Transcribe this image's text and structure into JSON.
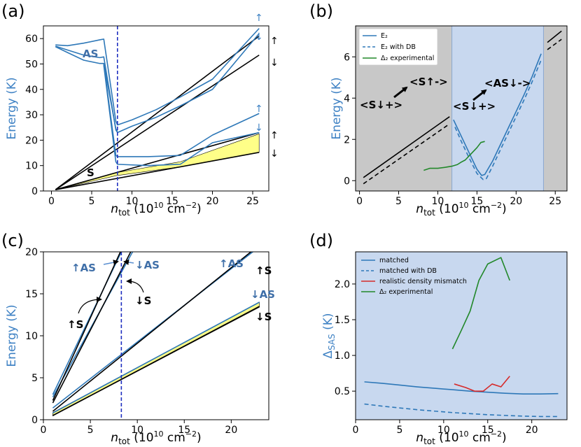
{
  "colors": {
    "blue": "#2e78b8",
    "label_blue": "#3f82c4",
    "black": "#000000",
    "green": "#22882a",
    "red": "#d62a2a",
    "yellow": "#ffff88",
    "grey": "#c8c8c8",
    "light_blue": "#c8d8ef",
    "dashed_blue": "#1f2fc0"
  },
  "panels": {
    "a": {
      "label": "(a)",
      "xlabel_var": "n",
      "xlabel_sub": "tot",
      "xlabel_unit": " (10",
      "xlabel_exp": "10",
      "xlabel_unit2": " cm",
      "xlabel_exp2": "−2",
      "xlabel_close": ")",
      "ylabel": "Energy (K)",
      "ann_AS": "AS",
      "ann_S": "S"
    },
    "b": {
      "label": "(b)",
      "xlabel_var": "n",
      "xlabel_sub": "tot",
      "xlabel_unit": " (10",
      "xlabel_exp": "10",
      "xlabel_unit2": " cm",
      "xlabel_exp2": "−2",
      "xlabel_close": ")",
      "ylabel": "Energy (K)",
      "legend": [
        "E₂",
        "E₂ with DB",
        "Δ₂ experimental"
      ],
      "ann": [
        "<S↓+>",
        "<S↑->",
        "<S↓+>",
        "<AS↓->"
      ]
    },
    "c": {
      "label": "(c)",
      "xlabel_var": "n",
      "xlabel_sub": "tot",
      "xlabel_unit": " (10",
      "xlabel_exp": "10",
      "xlabel_unit2": " cm",
      "xlabel_exp2": "−2",
      "xlabel_close": ")",
      "ylabel": "Energy (K)",
      "ann_blue": [
        "↑AS",
        "↓AS",
        "↑AS",
        "↓AS"
      ],
      "ann_black": [
        "↑S",
        "↓S",
        "↑S",
        "↓S"
      ]
    },
    "d": {
      "label": "(d)",
      "xlabel_var": "n",
      "xlabel_sub": "tot",
      "xlabel_unit": " (10",
      "xlabel_exp": "10",
      "xlabel_unit2": " cm",
      "xlabel_exp2": "−2",
      "xlabel_close": ")",
      "ylabel_main": "Δ",
      "ylabel_sub": "SAS",
      "ylabel_unit": " (K)",
      "legend": [
        "matched",
        "matched with DB",
        "realistic density mismatch",
        "Δ₂ experimental"
      ]
    }
  },
  "chart_data": [
    {
      "panel": "a",
      "type": "line",
      "xlim": [
        -1,
        27
      ],
      "ylim": [
        0,
        65
      ],
      "xticks": [
        "0",
        "5",
        "10",
        "15",
        "20",
        "25"
      ],
      "xtick_values": [
        0,
        5,
        10,
        15,
        20,
        25
      ],
      "yticks": [
        "0",
        "10",
        "20",
        "30",
        "40",
        "50",
        "60"
      ],
      "ytick_values": [
        0,
        10,
        20,
        30,
        40,
        50,
        60
      ],
      "vline_x": 8.2,
      "shaded_region": {
        "x": [
          0.5,
          8,
          16,
          25.8
        ],
        "upper": [
          0.5,
          7.2,
          11.5,
          22.5
        ],
        "lower": [
          0.5,
          6,
          9.5,
          15.2
        ]
      },
      "series": [
        {
          "name": "black-1",
          "color": "black",
          "x": [
            0.5,
            25.8
          ],
          "y": [
            0.5,
            61
          ]
        },
        {
          "name": "black-2",
          "color": "black",
          "x": [
            0.5,
            25.8
          ],
          "y": [
            0.5,
            53.5
          ]
        },
        {
          "name": "black-3",
          "color": "black",
          "x": [
            0.5,
            25.8
          ],
          "y": [
            0.5,
            23
          ]
        },
        {
          "name": "black-4",
          "color": "black",
          "x": [
            0.5,
            25.8
          ],
          "y": [
            0.5,
            15.2
          ]
        },
        {
          "name": "blue-AS-1",
          "color": "blue",
          "x": [
            0.5,
            2,
            4,
            6,
            6.5,
            8,
            8.2,
            10,
            13,
            16,
            20,
            25.8
          ],
          "y": [
            57.5,
            57.2,
            58.2,
            59.5,
            59.8,
            27.5,
            26,
            28,
            32,
            37,
            44,
            64
          ]
        },
        {
          "name": "blue-AS-2",
          "color": "blue",
          "x": [
            0.5,
            2,
            4,
            6,
            6.5,
            8,
            8.2,
            10,
            13,
            16,
            20,
            25.8
          ],
          "y": [
            57,
            55.5,
            53.5,
            52.5,
            52.8,
            24,
            23,
            25.5,
            29,
            33.5,
            40,
            62
          ]
        },
        {
          "name": "blue-AS-3",
          "color": "blue",
          "x": [
            0.5,
            2,
            4,
            6,
            6.5,
            8,
            8.2
          ],
          "y": [
            56.8,
            54.5,
            51.5,
            50.2,
            50.2,
            24.5,
            23.5
          ]
        },
        {
          "name": "blue-S-1",
          "color": "blue",
          "x": [
            6.5,
            8,
            8.2,
            12,
            16,
            20,
            25.8
          ],
          "y": [
            50,
            14,
            13.5,
            13.5,
            14,
            22,
            30.5
          ]
        },
        {
          "name": "blue-S-2",
          "color": "blue",
          "x": [
            6.5,
            8,
            8.2,
            12,
            16,
            20,
            25.8
          ],
          "y": [
            49.5,
            11.5,
            10.5,
            10,
            10.5,
            19,
            23
          ]
        }
      ]
    },
    {
      "panel": "b",
      "type": "line",
      "xlim": [
        -0.5,
        26.5
      ],
      "ylim": [
        -0.5,
        7.5
      ],
      "xticks": [
        "0",
        "5",
        "10",
        "15",
        "20",
        "25"
      ],
      "xtick_values": [
        0,
        5,
        10,
        15,
        20,
        25
      ],
      "yticks": [
        "0",
        "2",
        "4",
        "6"
      ],
      "ytick_values": [
        0,
        2,
        4,
        6
      ],
      "regions": [
        {
          "x0": -0.5,
          "x1": 11.8,
          "fill": "grey"
        },
        {
          "x0": 11.8,
          "x1": 23.5,
          "fill": "light_blue"
        },
        {
          "x0": 23.5,
          "x1": 26.5,
          "fill": "grey"
        }
      ],
      "series": [
        {
          "name": "E₂ (left)",
          "color": "black",
          "dash": false,
          "x": [
            0.5,
            11.5
          ],
          "y": [
            0.15,
            3.1
          ]
        },
        {
          "name": "E₂ with DB (left)",
          "color": "black",
          "dash": true,
          "x": [
            0.5,
            11.5
          ],
          "y": [
            -0.15,
            2.75
          ]
        },
        {
          "name": "E₂ (right)",
          "color": "black",
          "dash": false,
          "x": [
            24,
            25.8
          ],
          "y": [
            6.7,
            7.25
          ]
        },
        {
          "name": "E₂ with DB (right)",
          "color": "black",
          "dash": true,
          "x": [
            24,
            25.8
          ],
          "y": [
            6.35,
            6.85
          ]
        },
        {
          "name": "E₂",
          "color": "blue",
          "dash": false,
          "x": [
            12,
            13,
            14,
            15,
            15.6,
            16,
            17,
            18,
            19,
            20,
            21,
            22,
            23.2
          ],
          "y": [
            2.95,
            2.15,
            1.35,
            0.55,
            0.25,
            0.3,
            0.95,
            1.75,
            2.55,
            3.35,
            4.15,
            5.0,
            6.15
          ]
        },
        {
          "name": "E₂ with DB",
          "color": "blue",
          "dash": true,
          "x": [
            12.2,
            13,
            14,
            15,
            15.8,
            16.2,
            17,
            18,
            19,
            20,
            21,
            22,
            23.2
          ],
          "y": [
            2.6,
            1.9,
            1.1,
            0.35,
            0.05,
            0.1,
            0.7,
            1.5,
            2.3,
            3.1,
            3.9,
            4.75,
            5.85
          ]
        },
        {
          "name": "Δ₂ experimental",
          "color": "green",
          "dash": false,
          "x": [
            8.2,
            9,
            10,
            11,
            11.8,
            12.5,
            13,
            13.5,
            14,
            14.5,
            15,
            15.5,
            16
          ],
          "y": [
            0.5,
            0.6,
            0.6,
            0.65,
            0.7,
            0.78,
            0.9,
            1.0,
            1.2,
            1.4,
            1.6,
            1.85,
            1.9
          ]
        }
      ]
    },
    {
      "panel": "c",
      "type": "line",
      "xlim": [
        0,
        24
      ],
      "ylim": [
        0,
        20
      ],
      "xticks": [
        "0",
        "5",
        "10",
        "15",
        "20"
      ],
      "xtick_values": [
        0,
        5,
        10,
        15,
        20
      ],
      "yticks": [
        "0",
        "5",
        "10",
        "15",
        "20"
      ],
      "ytick_values": [
        0,
        5,
        10,
        15,
        20
      ],
      "vline_x": 8.3,
      "shaded_region": {
        "x": [
          1,
          23
        ],
        "upper": [
          0.85,
          14
        ],
        "lower": [
          0.45,
          13.4
        ]
      },
      "series": [
        {
          "name": "↑AS steep",
          "color": "blue",
          "x": [
            1,
            8.3
          ],
          "y": [
            3,
            20
          ]
        },
        {
          "name": "↓AS steep",
          "color": "blue",
          "x": [
            1,
            9.5
          ],
          "y": [
            2.7,
            20
          ]
        },
        {
          "name": "↑S steep",
          "color": "black",
          "x": [
            1,
            8.2
          ],
          "y": [
            2.3,
            20
          ]
        },
        {
          "name": "↓S steep",
          "color": "black",
          "x": [
            1,
            9.3
          ],
          "y": [
            2,
            20
          ]
        },
        {
          "name": "↑AS",
          "color": "blue",
          "x": [
            1,
            22.3
          ],
          "y": [
            1.4,
            20
          ]
        },
        {
          "name": "↑S",
          "color": "black",
          "x": [
            1,
            22.1
          ],
          "y": [
            1,
            20
          ]
        },
        {
          "name": "↓AS",
          "color": "blue",
          "x": [
            1,
            23
          ],
          "y": [
            0.8,
            14
          ]
        },
        {
          "name": "↓S",
          "color": "black",
          "x": [
            1,
            23
          ],
          "y": [
            0.5,
            13.5
          ]
        }
      ]
    },
    {
      "panel": "d",
      "type": "line",
      "xlim": [
        0,
        24
      ],
      "ylim": [
        0.1,
        2.45
      ],
      "xticks": [
        "0",
        "5",
        "10",
        "15",
        "20"
      ],
      "xtick_values": [
        0,
        5,
        10,
        15,
        20
      ],
      "yticks": [
        "0.5",
        "1.0",
        "1.5",
        "2.0"
      ],
      "ytick_values": [
        0.5,
        1.0,
        1.5,
        2.0
      ],
      "background": "light_blue",
      "series": [
        {
          "name": "matched",
          "color": "blue",
          "dash": false,
          "x": [
            1,
            3,
            5,
            7,
            9,
            11,
            13,
            15,
            17,
            19,
            21,
            23
          ],
          "y": [
            0.63,
            0.61,
            0.585,
            0.56,
            0.54,
            0.52,
            0.5,
            0.485,
            0.47,
            0.46,
            0.46,
            0.465
          ]
        },
        {
          "name": "matched with DB",
          "color": "blue",
          "dash": true,
          "x": [
            1,
            3,
            5,
            7,
            9,
            11,
            13,
            15,
            17,
            19,
            21,
            23
          ],
          "y": [
            0.32,
            0.29,
            0.265,
            0.24,
            0.22,
            0.2,
            0.185,
            0.17,
            0.16,
            0.15,
            0.145,
            0.145
          ]
        },
        {
          "name": "realistic density mismatch",
          "color": "red",
          "dash": false,
          "x": [
            11.2,
            12.5,
            13.5,
            14.5,
            15.5,
            16.5,
            17.5
          ],
          "y": [
            0.6,
            0.55,
            0.5,
            0.5,
            0.6,
            0.56,
            0.71
          ]
        },
        {
          "name": "Δ₂ experimental",
          "color": "green",
          "dash": false,
          "x": [
            11,
            12,
            13,
            14,
            15,
            16.5,
            17.5
          ],
          "y": [
            1.09,
            1.35,
            1.62,
            2.05,
            2.28,
            2.37,
            2.05
          ]
        }
      ]
    }
  ]
}
